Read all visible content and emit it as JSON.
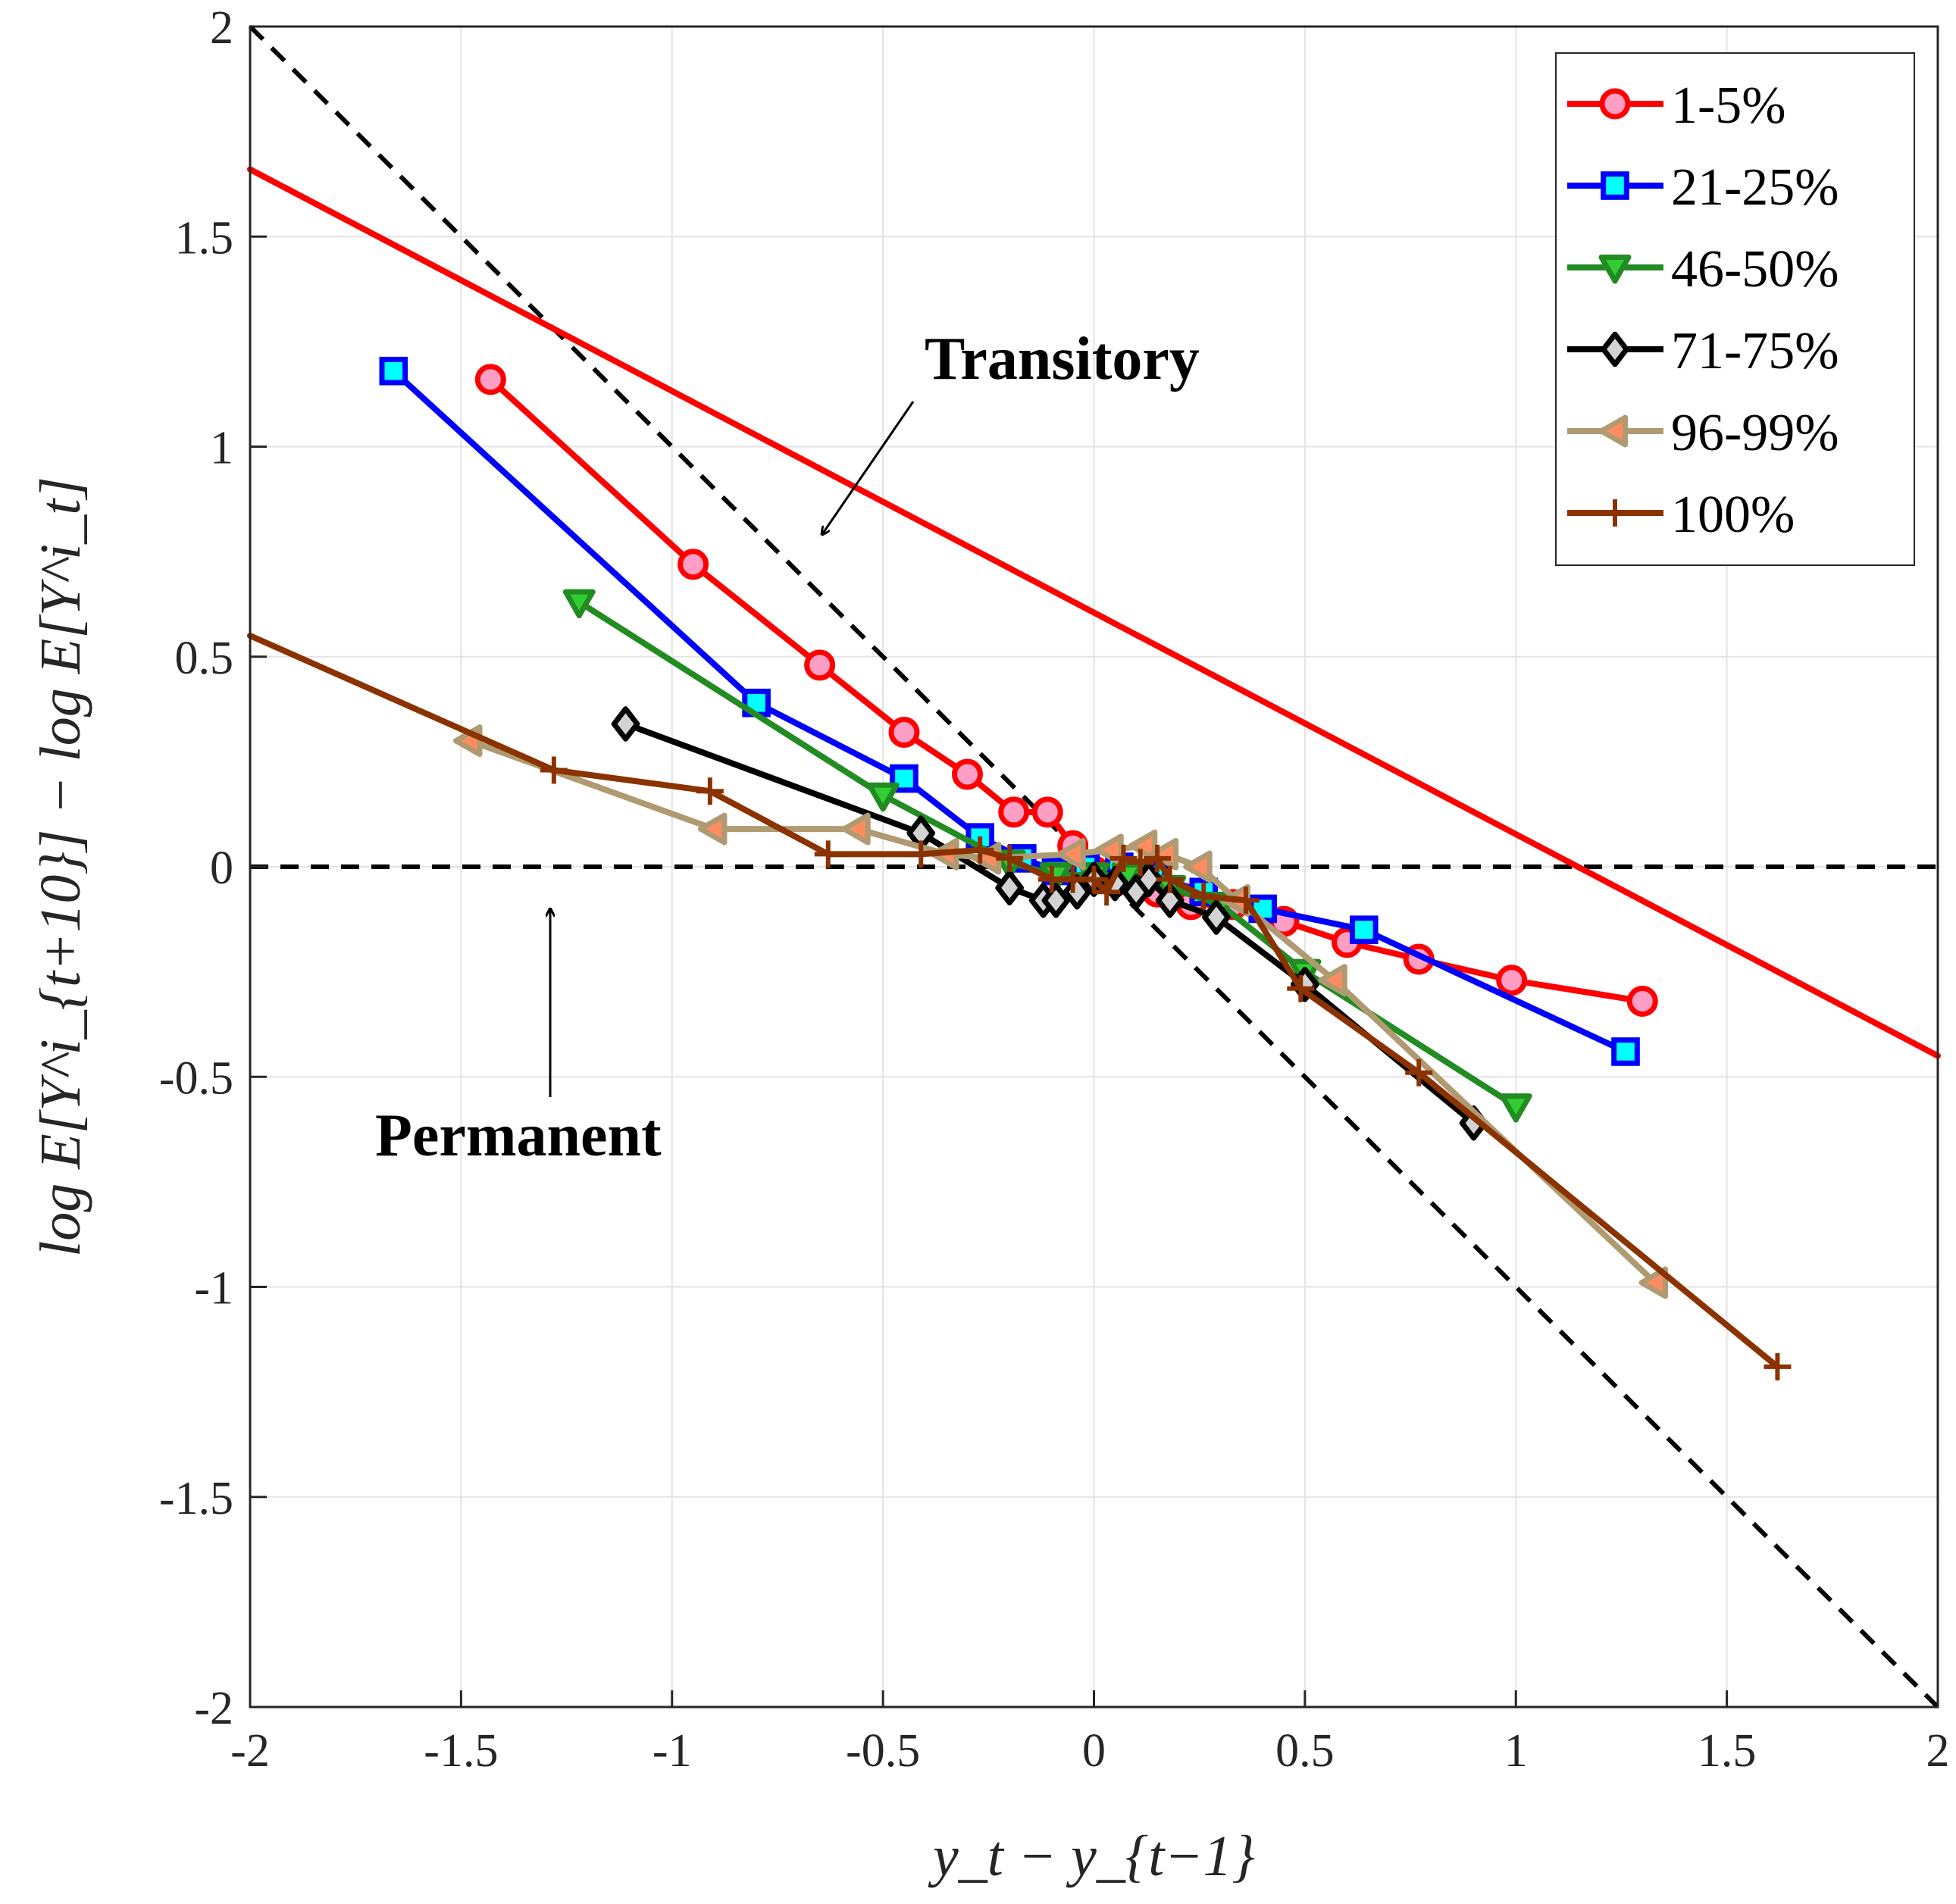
{
  "chart_data": {
    "type": "line",
    "title": "",
    "xlabel": "y_t − y_{t−1}",
    "ylabel": "log E[Y^i_{t+10}] − log E[Y^i_t]",
    "xlim": [
      -2,
      2
    ],
    "ylim": [
      -2,
      2
    ],
    "xticks": [
      "-2",
      "-1.5",
      "-1",
      "-0.5",
      "0",
      "0.5",
      "1",
      "1.5",
      "2"
    ],
    "yticks": [
      "-2",
      "-1.5",
      "-1",
      "-0.5",
      "0",
      "0.5",
      "1",
      "1.5",
      "2"
    ],
    "grid": true,
    "legend_position": "top-right",
    "reference_lines": [
      {
        "name": "Transitory",
        "slope": -1,
        "intercept": 0,
        "style": "dashed",
        "color": "#000000"
      },
      {
        "name": "Permanent",
        "slope": 0,
        "intercept": 0,
        "style": "dashed",
        "color": "#000000"
      }
    ],
    "annotations": [
      {
        "text": "Transitory",
        "points_to": [
          -0.65,
          0.78
        ]
      },
      {
        "text": "Permanent",
        "points_to": [
          -1.3,
          -0.08
        ]
      }
    ],
    "series": [
      {
        "name": "1-5%",
        "color": "#ff0000",
        "marker": "circle",
        "marker_fill": "#ff9ec4",
        "line_extension": {
          "x": [
            -2,
            2
          ],
          "y": [
            1.66,
            -0.45
          ]
        },
        "points": [
          [
            -1.43,
            1.16
          ],
          [
            -0.95,
            0.72
          ],
          [
            -0.65,
            0.48
          ],
          [
            -0.45,
            0.32
          ],
          [
            -0.3,
            0.22
          ],
          [
            -0.19,
            0.13
          ],
          [
            -0.11,
            0.13
          ],
          [
            -0.05,
            0.05
          ],
          [
            0.0,
            -0.01
          ],
          [
            0.07,
            -0.03
          ],
          [
            0.15,
            -0.06
          ],
          [
            0.23,
            -0.09
          ],
          [
            0.33,
            -0.09
          ],
          [
            0.45,
            -0.13
          ],
          [
            0.6,
            -0.18
          ],
          [
            0.77,
            -0.22
          ],
          [
            0.99,
            -0.27
          ],
          [
            1.3,
            -0.32
          ]
        ]
      },
      {
        "name": "21-25%",
        "color": "#0000ff",
        "marker": "square",
        "marker_fill": "#00ffff",
        "points": [
          [
            -1.66,
            1.18
          ],
          [
            -0.8,
            0.39
          ],
          [
            -0.45,
            0.21
          ],
          [
            -0.27,
            0.07
          ],
          [
            -0.17,
            0.02
          ],
          [
            -0.09,
            -0.01
          ],
          [
            -0.02,
            0.0
          ],
          [
            0.06,
            0.0
          ],
          [
            0.14,
            -0.02
          ],
          [
            0.26,
            -0.06
          ],
          [
            0.4,
            -0.1
          ],
          [
            0.64,
            -0.15
          ],
          [
            1.26,
            -0.44
          ]
        ]
      },
      {
        "name": "46-50%",
        "color": "#228b22",
        "marker": "triangle-down",
        "marker_fill": "#32cd32",
        "points": [
          [
            -1.22,
            0.63
          ],
          [
            -0.5,
            0.17
          ],
          [
            -0.2,
            0.01
          ],
          [
            -0.09,
            -0.02
          ],
          [
            0.0,
            -0.02
          ],
          [
            0.08,
            -0.02
          ],
          [
            0.18,
            -0.05
          ],
          [
            0.3,
            -0.09
          ],
          [
            0.5,
            -0.25
          ],
          [
            1.0,
            -0.57
          ]
        ]
      },
      {
        "name": "71-75%",
        "color": "#000000",
        "marker": "diamond",
        "marker_fill": "#d3d3d3",
        "points": [
          [
            -1.11,
            0.34
          ],
          [
            -0.41,
            0.08
          ],
          [
            -0.2,
            -0.05
          ],
          [
            -0.12,
            -0.08
          ],
          [
            -0.09,
            -0.08
          ],
          [
            -0.04,
            -0.06
          ],
          [
            0.0,
            -0.03
          ],
          [
            0.05,
            -0.04
          ],
          [
            0.1,
            -0.06
          ],
          [
            0.13,
            -0.03
          ],
          [
            0.18,
            -0.08
          ],
          [
            0.29,
            -0.12
          ],
          [
            0.5,
            -0.28
          ],
          [
            0.9,
            -0.61
          ]
        ]
      },
      {
        "name": "96-99%",
        "color": "#b09a72",
        "marker": "triangle-left",
        "marker_fill": "#ff8c60",
        "points": [
          [
            -1.48,
            0.3
          ],
          [
            -0.9,
            0.09
          ],
          [
            -0.56,
            0.09
          ],
          [
            -0.35,
            0.03
          ],
          [
            -0.25,
            0.02
          ],
          [
            -0.05,
            0.03
          ],
          [
            0.04,
            0.04
          ],
          [
            0.12,
            0.05
          ],
          [
            0.17,
            0.03
          ],
          [
            0.25,
            0.0
          ],
          [
            0.34,
            -0.08
          ],
          [
            0.57,
            -0.27
          ],
          [
            1.33,
            -0.99
          ]
        ]
      },
      {
        "name": "100%",
        "color": "#8b3300",
        "marker": "plus",
        "marker_fill": "#8b3300",
        "line_extension": {
          "x": [
            -2,
            -1.28
          ],
          "y": [
            0.55,
            0.23
          ]
        },
        "points": [
          [
            -1.28,
            0.23
          ],
          [
            -0.91,
            0.18
          ],
          [
            -0.63,
            0.03
          ],
          [
            -0.41,
            0.03
          ],
          [
            -0.27,
            0.04
          ],
          [
            -0.2,
            0.02
          ],
          [
            -0.1,
            -0.03
          ],
          [
            -0.05,
            -0.03
          ],
          [
            0.0,
            -0.03
          ],
          [
            0.03,
            -0.06
          ],
          [
            0.07,
            0.02
          ],
          [
            0.11,
            0.01
          ],
          [
            0.15,
            0.02
          ],
          [
            0.18,
            -0.03
          ],
          [
            0.26,
            -0.07
          ],
          [
            0.36,
            -0.08
          ],
          [
            0.49,
            -0.29
          ],
          [
            0.77,
            -0.49
          ],
          [
            1.62,
            -1.19
          ]
        ]
      }
    ]
  }
}
